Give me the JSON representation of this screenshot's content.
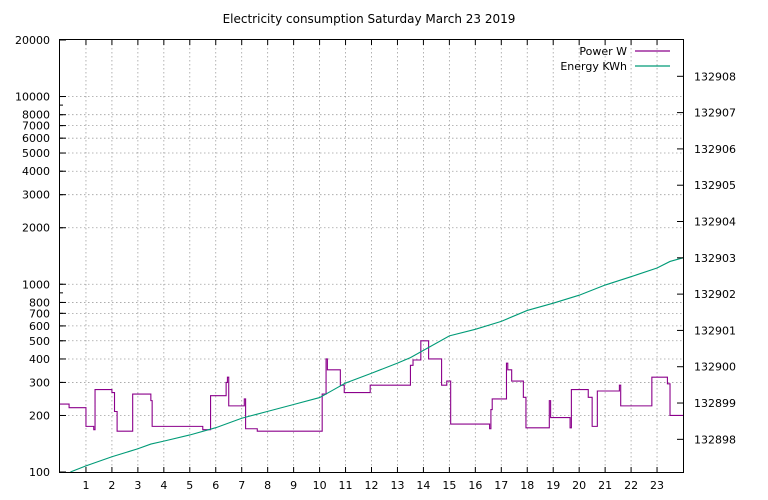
{
  "chart_data": {
    "type": "line",
    "title": "Electricity consumption Saturday March 23 2019",
    "xlim": [
      0,
      24
    ],
    "x_ticks": [
      1,
      2,
      3,
      4,
      5,
      6,
      7,
      8,
      9,
      10,
      11,
      12,
      13,
      14,
      15,
      16,
      17,
      18,
      19,
      20,
      21,
      22,
      23
    ],
    "y_left": {
      "scale": "log",
      "ylim": [
        100,
        20000
      ],
      "ticks": [
        100,
        200,
        300,
        400,
        500,
        600,
        700,
        800,
        1000,
        2000,
        3000,
        4000,
        5000,
        6000,
        7000,
        8000,
        10000,
        20000
      ]
    },
    "y_right": {
      "scale": "linear",
      "ylim": [
        132897.1,
        132909
      ],
      "ticks": [
        132898,
        132899,
        132900,
        132901,
        132902,
        132903,
        132904,
        132905,
        132906,
        132907,
        132908
      ]
    },
    "grid": true,
    "legend_position": "top-right",
    "series": [
      {
        "name": "Power W",
        "axis": "left",
        "color": "#8b008b",
        "step": true,
        "points": [
          [
            0.0,
            230
          ],
          [
            0.35,
            220
          ],
          [
            1.0,
            175
          ],
          [
            1.3,
            168
          ],
          [
            1.35,
            275
          ],
          [
            2.0,
            265
          ],
          [
            2.1,
            210
          ],
          [
            2.2,
            165
          ],
          [
            2.8,
            260
          ],
          [
            3.5,
            240
          ],
          [
            3.55,
            175
          ],
          [
            5.5,
            168
          ],
          [
            5.8,
            255
          ],
          [
            6.4,
            300
          ],
          [
            6.45,
            320
          ],
          [
            6.5,
            225
          ],
          [
            7.1,
            245
          ],
          [
            7.15,
            170
          ],
          [
            7.6,
            165
          ],
          [
            10.1,
            260
          ],
          [
            10.25,
            400
          ],
          [
            10.3,
            350
          ],
          [
            10.8,
            290
          ],
          [
            10.95,
            265
          ],
          [
            11.95,
            290
          ],
          [
            13.5,
            370
          ],
          [
            13.6,
            395
          ],
          [
            13.9,
            500
          ],
          [
            14.2,
            400
          ],
          [
            14.7,
            290
          ],
          [
            14.9,
            305
          ],
          [
            15.05,
            180
          ],
          [
            16.55,
            170
          ],
          [
            16.6,
            215
          ],
          [
            16.65,
            245
          ],
          [
            17.2,
            380
          ],
          [
            17.25,
            350
          ],
          [
            17.4,
            305
          ],
          [
            17.85,
            250
          ],
          [
            17.95,
            172
          ],
          [
            18.85,
            240
          ],
          [
            18.9,
            195
          ],
          [
            19.65,
            172
          ],
          [
            19.7,
            275
          ],
          [
            20.35,
            250
          ],
          [
            20.5,
            175
          ],
          [
            20.7,
            270
          ],
          [
            21.55,
            290
          ],
          [
            21.6,
            225
          ],
          [
            22.8,
            320
          ],
          [
            23.4,
            295
          ],
          [
            23.5,
            200
          ],
          [
            24.0,
            200
          ]
        ]
      },
      {
        "name": "Energy KWh",
        "axis": "right",
        "color": "#009b77",
        "step": false,
        "points": [
          [
            0.4,
            132897.1
          ],
          [
            1.0,
            132897.27
          ],
          [
            2.0,
            132897.52
          ],
          [
            3.0,
            132897.74
          ],
          [
            3.5,
            132897.87
          ],
          [
            4.0,
            132897.95
          ],
          [
            5.0,
            132898.12
          ],
          [
            6.0,
            132898.32
          ],
          [
            7.0,
            132898.58
          ],
          [
            8.0,
            132898.77
          ],
          [
            9.0,
            132898.96
          ],
          [
            10.0,
            132899.15
          ],
          [
            10.5,
            132899.35
          ],
          [
            11.0,
            132899.55
          ],
          [
            12.0,
            132899.82
          ],
          [
            13.0,
            132900.1
          ],
          [
            13.5,
            132900.25
          ],
          [
            14.0,
            132900.45
          ],
          [
            15.0,
            132900.85
          ],
          [
            16.0,
            132901.03
          ],
          [
            17.0,
            132901.25
          ],
          [
            18.0,
            132901.55
          ],
          [
            19.0,
            132901.75
          ],
          [
            20.0,
            132901.97
          ],
          [
            21.0,
            132902.25
          ],
          [
            22.0,
            132902.48
          ],
          [
            23.0,
            132902.72
          ],
          [
            23.5,
            132902.9
          ],
          [
            24.0,
            132903.0
          ]
        ]
      }
    ]
  }
}
